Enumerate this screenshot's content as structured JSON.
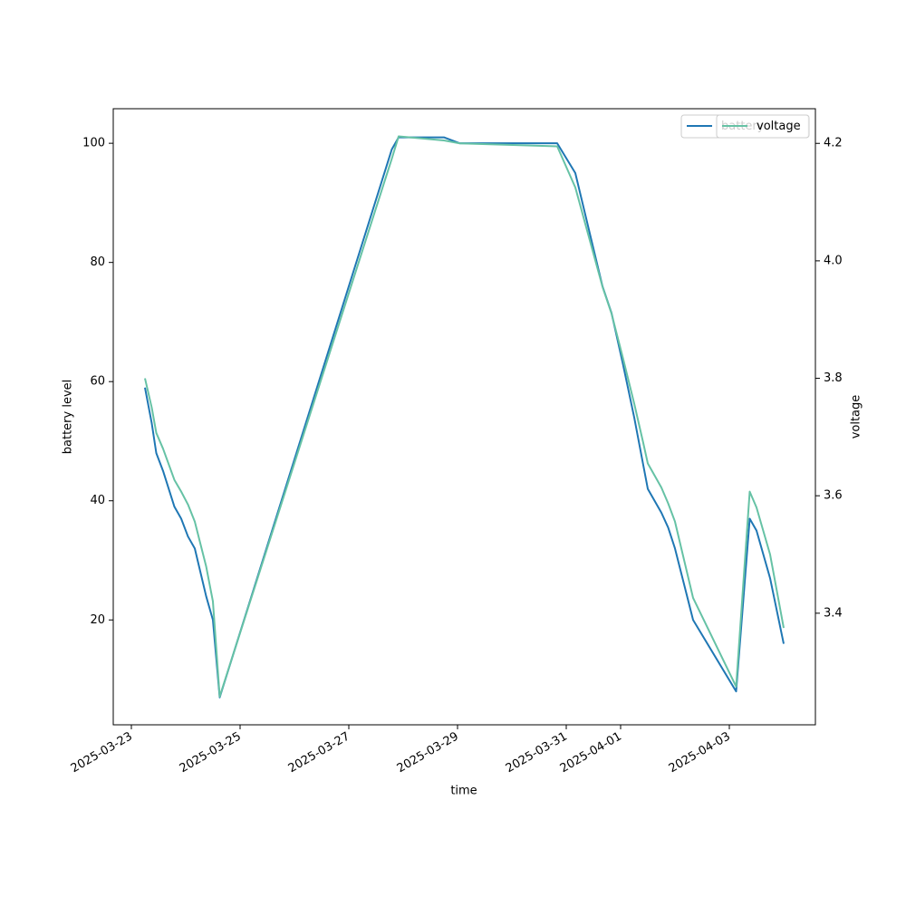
{
  "chart_data": {
    "type": "line",
    "x_label": "time",
    "y_label": "battery level",
    "y2_label": "voltage",
    "x": [
      "2025-03-23T06:00",
      "2025-03-23T09:00",
      "2025-03-23T11:00",
      "2025-03-23T14:00",
      "2025-03-23T19:00",
      "2025-03-23T22:00",
      "2025-03-24T01:00",
      "2025-03-24T04:00",
      "2025-03-24T09:00",
      "2025-03-24T12:00",
      "2025-03-24T15:00",
      "2025-03-27T19:00",
      "2025-03-27T22:00",
      "2025-03-28T18:00",
      "2025-03-29T01:00",
      "2025-03-30T20:00",
      "2025-03-31T04:00",
      "2025-03-31T16:00",
      "2025-03-31T20:00",
      "2025-04-01T01:00",
      "2025-04-01T06:00",
      "2025-04-01T10:00",
      "2025-04-01T12:00",
      "2025-04-01T18:00",
      "2025-04-01T21:00",
      "2025-04-02T00:00",
      "2025-04-02T08:00",
      "2025-04-03T03:00",
      "2025-04-03T09:00",
      "2025-04-03T12:00",
      "2025-04-03T18:00",
      "2025-04-04T00:00"
    ],
    "series": [
      {
        "name": "battery",
        "color": "#1f77b4",
        "axis": "y",
        "values": [
          59,
          53,
          48,
          45,
          39,
          37,
          34,
          32,
          24,
          20,
          7,
          99,
          101,
          101,
          100,
          100,
          95,
          76,
          71.5,
          63,
          54,
          46,
          42,
          38,
          35.5,
          32,
          20,
          8,
          37,
          35,
          27,
          16
        ]
      },
      {
        "name": "voltage",
        "color": "#66c2a5",
        "axis": "y2",
        "values": [
          3.8,
          3.75,
          3.707,
          3.68,
          3.627,
          3.607,
          3.585,
          3.556,
          3.48,
          3.42,
          3.258,
          4.174,
          4.212,
          4.205,
          4.2,
          4.195,
          4.125,
          3.956,
          3.91,
          3.835,
          3.757,
          3.69,
          3.655,
          3.614,
          3.587,
          3.556,
          3.426,
          3.275,
          3.607,
          3.58,
          3.5,
          3.375
        ]
      }
    ],
    "xlim": [
      "2025-03-22T16:00",
      "2025-04-04T14:00"
    ],
    "xticks": [
      "2025-03-23",
      "2025-03-25",
      "2025-03-27",
      "2025-03-29",
      "2025-03-31",
      "2025-04-01",
      "2025-04-03"
    ],
    "ylim": [
      2.4,
      105.8
    ],
    "yticks": [
      20,
      40,
      60,
      80,
      100
    ],
    "y2lim": [
      3.21,
      4.259
    ],
    "y2ticks": [
      3.4,
      3.6,
      3.8,
      {
        "value": 4,
        "label": "4.0"
      },
      4.2
    ],
    "legend": "upper right",
    "grid": false
  }
}
